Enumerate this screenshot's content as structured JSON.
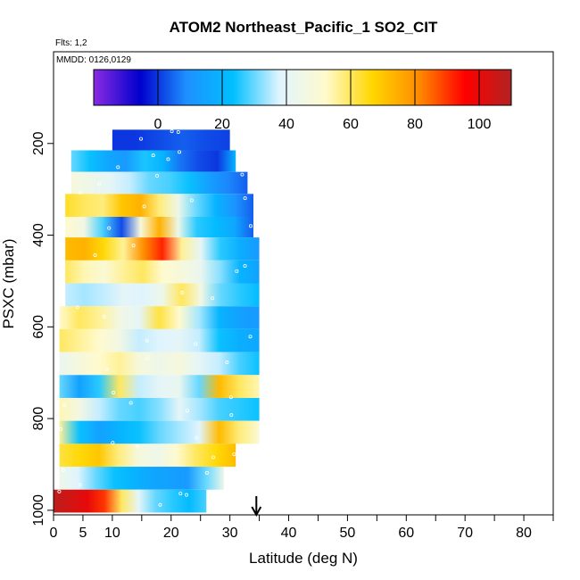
{
  "chart_data": {
    "type": "heatmap",
    "title": "ATOM2 Northeast_Pacific_1 SO2_CIT",
    "flights_note": "Flts: 1,2",
    "mmdd_note": "MMDD: 0126,0129",
    "xlabel": "Latitude (deg N)",
    "ylabel": "PSXC (mbar)",
    "xlim": [
      0,
      85
    ],
    "ylim": [
      1010,
      0
    ],
    "x_ticks": [
      0,
      5,
      10,
      20,
      30,
      40,
      50,
      60,
      70,
      80
    ],
    "x_tick_labels": [
      "0",
      "5",
      "10",
      "20",
      "30",
      "40",
      "50",
      "60",
      "70",
      "80"
    ],
    "x_minor_ticks": [
      15,
      25,
      35,
      45,
      55,
      65,
      75,
      85
    ],
    "y_ticks": [
      200,
      400,
      600,
      800,
      1000
    ],
    "y_tick_labels": [
      "200",
      "400",
      "600",
      "800",
      "1000"
    ],
    "colorbar": {
      "min": -20,
      "max": 110,
      "ticks": [
        0,
        20,
        40,
        60,
        80,
        100
      ],
      "tick_labels": [
        "0",
        "20",
        "40",
        "60",
        "80",
        "100"
      ],
      "colors": [
        "#8a2be2",
        "#0000cd",
        "#1e90ff",
        "#00bfff",
        "#e0f4ff",
        "#fffacd",
        "#ffd700",
        "#ff8c00",
        "#ff0000",
        "#b22222"
      ]
    },
    "marker": {
      "x": 34.5,
      "label": "arrow"
    },
    "grid": false,
    "legend": "none",
    "rows": [
      {
        "pmin": 170,
        "pmax": 215,
        "lat": [
          10,
          30
        ],
        "vals": [
          0,
          0,
          2,
          4,
          2,
          1
        ]
      },
      {
        "pmin": 215,
        "pmax": 262,
        "lat": [
          3,
          31
        ],
        "vals": [
          30,
          24,
          16,
          12,
          25,
          20,
          6,
          2,
          0,
          20
        ]
      },
      {
        "pmin": 262,
        "pmax": 310,
        "lat": [
          3,
          33
        ],
        "vals": [
          48,
          44,
          40,
          36,
          30,
          28,
          24,
          14,
          8,
          4
        ]
      },
      {
        "pmin": 310,
        "pmax": 360,
        "lat": [
          2,
          34
        ],
        "vals": [
          64,
          60,
          58,
          70,
          74,
          58,
          44,
          30,
          20,
          10,
          4
        ]
      },
      {
        "pmin": 360,
        "pmax": 405,
        "lat": [
          2,
          34
        ],
        "vals": [
          52,
          46,
          28,
          2,
          48,
          74,
          44,
          26,
          22,
          16,
          4
        ]
      },
      {
        "pmin": 405,
        "pmax": 455,
        "lat": [
          2,
          35
        ],
        "vals": [
          72,
          74,
          66,
          56,
          80,
          92,
          56,
          40,
          26,
          18,
          12
        ]
      },
      {
        "pmin": 455,
        "pmax": 505,
        "lat": [
          2,
          35
        ],
        "vals": [
          60,
          54,
          50,
          56,
          60,
          52,
          48,
          42,
          32,
          20,
          14
        ]
      },
      {
        "pmin": 505,
        "pmax": 555,
        "lat": [
          2,
          35
        ],
        "vals": [
          36,
          34,
          36,
          40,
          38,
          44,
          60,
          46,
          30,
          26,
          22
        ]
      },
      {
        "pmin": 555,
        "pmax": 605,
        "lat": [
          1,
          35
        ],
        "vals": [
          52,
          60,
          56,
          46,
          40,
          62,
          52,
          34,
          20,
          14,
          12
        ]
      },
      {
        "pmin": 605,
        "pmax": 655,
        "lat": [
          1,
          35
        ],
        "vals": [
          60,
          56,
          52,
          46,
          36,
          38,
          40,
          36,
          24,
          18,
          16
        ]
      },
      {
        "pmin": 655,
        "pmax": 705,
        "lat": [
          1,
          35
        ],
        "vals": [
          42,
          48,
          52,
          56,
          48,
          44,
          48,
          40,
          36,
          28,
          24
        ]
      },
      {
        "pmin": 705,
        "pmax": 755,
        "lat": [
          1,
          35
        ],
        "vals": [
          30,
          14,
          26,
          60,
          36,
          40,
          42,
          30,
          72,
          60,
          54
        ]
      },
      {
        "pmin": 755,
        "pmax": 805,
        "lat": [
          1,
          35
        ],
        "vals": [
          54,
          46,
          36,
          30,
          28,
          32,
          40,
          34,
          28,
          26,
          24
        ]
      },
      {
        "pmin": 805,
        "pmax": 855,
        "lat": [
          1,
          35
        ],
        "vals": [
          56,
          24,
          14,
          20,
          24,
          30,
          34,
          38,
          72,
          58,
          50
        ]
      },
      {
        "pmin": 855,
        "pmax": 905,
        "lat": [
          1,
          31
        ],
        "vals": [
          62,
          66,
          70,
          58,
          48,
          44,
          52,
          60,
          66,
          72
        ]
      },
      {
        "pmin": 905,
        "pmax": 955,
        "lat": [
          1,
          29
        ],
        "vals": [
          44,
          38,
          30,
          24,
          20,
          16,
          14,
          12,
          30,
          44
        ]
      },
      {
        "pmin": 955,
        "pmax": 1005,
        "lat": [
          0,
          26
        ],
        "vals": [
          108,
          104,
          100,
          90,
          60,
          40,
          30,
          26,
          22,
          28
        ]
      }
    ]
  }
}
